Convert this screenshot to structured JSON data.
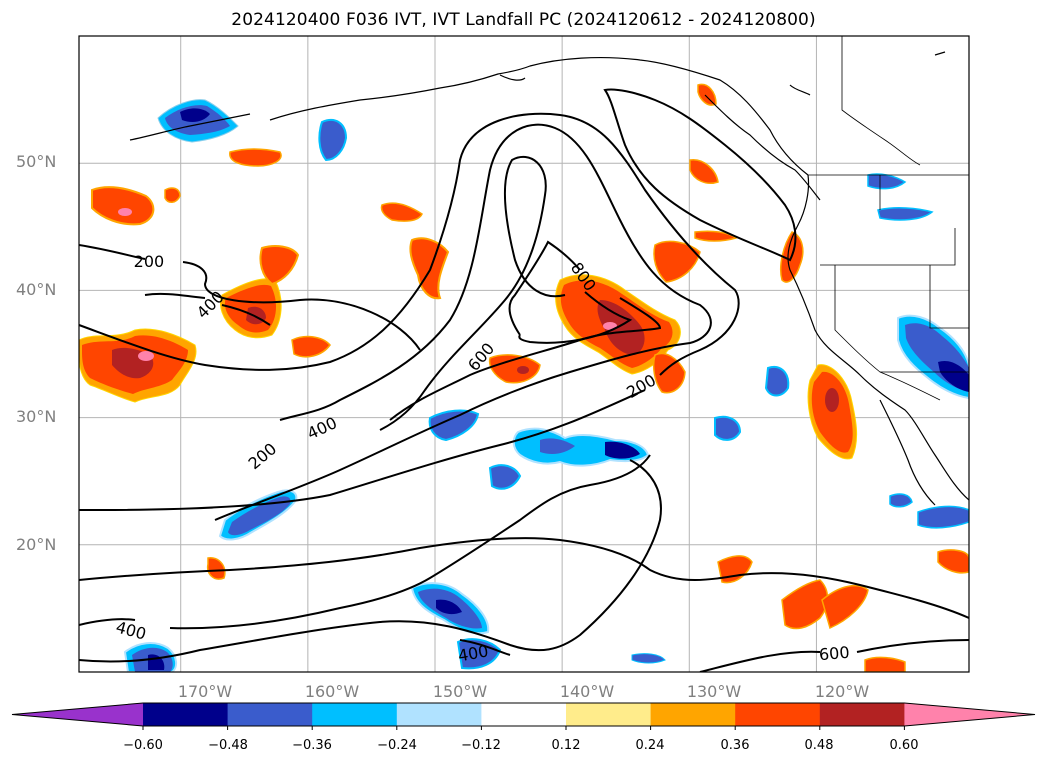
{
  "title": "2024120400 F036 IVT, IVT Landfall PC (2024120612 - 2024120800)",
  "map": {
    "projection": "cylindrical",
    "lon_range": [
      -178,
      -108
    ],
    "lat_range": [
      10,
      60
    ],
    "grid": true,
    "lat_ticks": [
      {
        "value": 50,
        "label": "50°N"
      },
      {
        "value": 40,
        "label": "40°N"
      },
      {
        "value": 30,
        "label": "30°N"
      },
      {
        "value": 20,
        "label": "20°N"
      }
    ],
    "lon_ticks": [
      {
        "value": -170,
        "label": "170°W"
      },
      {
        "value": -160,
        "label": "160°W"
      },
      {
        "value": -150,
        "label": "150°W"
      },
      {
        "value": -140,
        "label": "140°W"
      },
      {
        "value": -130,
        "label": "130°W"
      },
      {
        "value": -120,
        "label": "120°W"
      }
    ],
    "ivt_contour_labels": [
      {
        "text": "200",
        "lon": -172.5,
        "lat": 42.3
      },
      {
        "text": "400",
        "lon": -167.7,
        "lat": 38.9
      },
      {
        "text": "800",
        "lon": -138.3,
        "lat": 41.1
      },
      {
        "text": "600",
        "lon": -146.4,
        "lat": 34.8
      },
      {
        "text": "200",
        "lon": -133.8,
        "lat": 32.5
      },
      {
        "text": "200",
        "lon": -163.6,
        "lat": 27.0
      },
      {
        "text": "400",
        "lon": -158.9,
        "lat": 29.2
      },
      {
        "text": "400",
        "lon": -173.9,
        "lat": 13.3
      },
      {
        "text": "400",
        "lon": -147.0,
        "lat": 11.5
      },
      {
        "text": "600",
        "lon": -118.6,
        "lat": 11.5
      }
    ]
  },
  "colorbar": {
    "extend": "both",
    "colors": [
      "#9932cc",
      "#00008b",
      "#3a5ccc",
      "#00bfff",
      "#b0e2ff",
      "#ffffff",
      "#ffec8b",
      "#ffa500",
      "#ff4500",
      "#b22222",
      "#ff82ab"
    ],
    "tick_labels": [
      "−0.60",
      "−0.48",
      "−0.36",
      "−0.24",
      "−0.12",
      "0.12",
      "0.24",
      "0.36",
      "0.48",
      "0.60"
    ]
  },
  "legend_colors": {
    "coastline": "#000000",
    "contour": "#000000",
    "grid": "#b4b4b4"
  }
}
